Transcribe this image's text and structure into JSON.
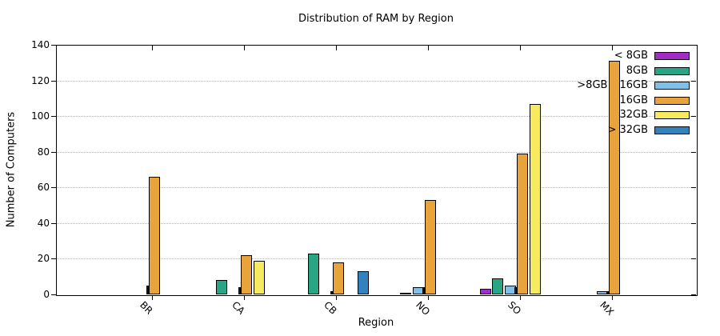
{
  "chart_data": {
    "type": "bar",
    "title": "Distribution of RAM by Region",
    "xlabel": "Region",
    "ylabel": "Number of Computers",
    "ylim": [
      0,
      140
    ],
    "ytick_step": 20,
    "grid": "horizontal-dotted",
    "legend_position": "top-right-inside, no box",
    "categories": [
      "BR",
      "CA",
      "CB",
      "NO",
      "SO",
      "MX"
    ],
    "series": [
      {
        "name": "< 8GB",
        "color": "#a32cc4",
        "values": [
          0,
          0,
          0,
          0,
          3,
          0
        ]
      },
      {
        "name": "8GB",
        "color": "#27a585",
        "values": [
          0,
          8,
          23,
          1,
          9,
          0
        ]
      },
      {
        "name": ">8GB <16GB",
        "color": "#7ec0e8",
        "values": [
          0,
          0,
          0,
          4,
          5,
          2
        ]
      },
      {
        "name": "16GB",
        "color": "#e8a33b",
        "values": [
          66,
          22,
          18,
          53,
          79,
          131
        ]
      },
      {
        "name": "32GB",
        "color": "#f6eb5f",
        "values": [
          0,
          19,
          0,
          0,
          107,
          0
        ]
      },
      {
        "name": "> 32GB",
        "color": "#3182bd",
        "values": [
          0,
          0,
          13,
          0,
          0,
          0
        ]
      }
    ],
    "unlabeled_thin_bars": {
      "color": "#1a1a1a",
      "position": "left-of-16GB-bar",
      "values": [
        5,
        4,
        2,
        4,
        4,
        2
      ]
    }
  }
}
